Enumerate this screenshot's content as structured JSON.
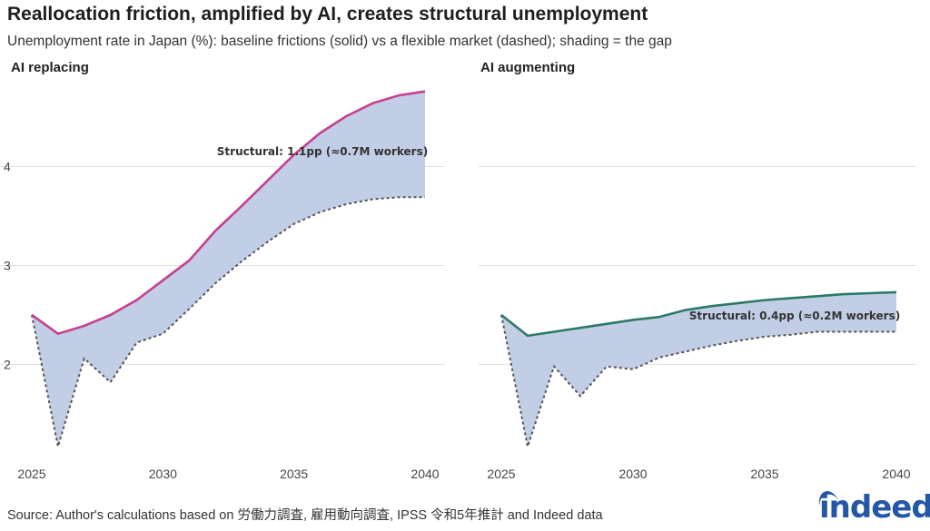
{
  "title": "Reallocation friction, amplified by AI, creates structural unemployment",
  "subtitle": "Unemployment rate in Japan (%): baseline frictions (solid) vs a flexible market (dashed); shading = the gap",
  "source": "Source: Author's calculations based on 労働力調査, 雇用動向調査, IPSS 令和5年推計 and Indeed data",
  "logo_text": "indeed",
  "colors": {
    "replacing_line": "#c5408f",
    "augmenting_line": "#2b7a67",
    "gap_fill": "#c2cde6",
    "dashed_line": "#555555",
    "grid": "#e2e2e2",
    "brand": "#2557a7"
  },
  "chart_data": [
    {
      "type": "area",
      "title": "AI replacing",
      "x": [
        2025,
        2026,
        2027,
        2028,
        2029,
        2030,
        2031,
        2032,
        2033,
        2034,
        2035,
        2036,
        2037,
        2038,
        2039,
        2040
      ],
      "series": [
        {
          "style": "solid",
          "values": [
            2.5,
            2.31,
            2.39,
            2.5,
            2.65,
            2.85,
            3.05,
            3.35,
            3.6,
            3.86,
            4.12,
            4.34,
            4.51,
            4.64,
            4.72,
            4.76
          ]
        },
        {
          "style": "dashed",
          "values": [
            2.5,
            1.17,
            2.06,
            1.82,
            2.22,
            2.31,
            2.56,
            2.82,
            3.04,
            3.24,
            3.42,
            3.54,
            3.62,
            3.67,
            3.69,
            3.69
          ]
        }
      ],
      "annotation": "Structural: 1.1pp (≈0.7M workers)",
      "xticks": [
        2025,
        2030,
        2035,
        2040
      ],
      "yticks": [
        2,
        3,
        4
      ],
      "xlim": [
        2025,
        2040
      ],
      "ylim": [
        1.05,
        4.95
      ],
      "grid": true
    },
    {
      "type": "area",
      "title": "AI augmenting",
      "x": [
        2025,
        2026,
        2027,
        2028,
        2029,
        2030,
        2031,
        2032,
        2033,
        2034,
        2035,
        2036,
        2037,
        2038,
        2039,
        2040
      ],
      "series": [
        {
          "style": "solid",
          "values": [
            2.5,
            2.29,
            2.33,
            2.37,
            2.41,
            2.45,
            2.48,
            2.55,
            2.59,
            2.62,
            2.65,
            2.67,
            2.69,
            2.71,
            2.72,
            2.73
          ]
        },
        {
          "style": "dashed",
          "values": [
            2.5,
            1.17,
            1.98,
            1.68,
            1.98,
            1.95,
            2.07,
            2.13,
            2.19,
            2.24,
            2.28,
            2.3,
            2.33,
            2.33,
            2.33,
            2.33
          ]
        }
      ],
      "annotation": "Structural: 0.4pp (≈0.2M workers)",
      "xticks": [
        2025,
        2030,
        2035,
        2040
      ],
      "yticks": [
        2,
        3,
        4
      ],
      "xlim": [
        2025,
        2040
      ],
      "ylim": [
        1.05,
        4.95
      ],
      "grid": true
    }
  ]
}
